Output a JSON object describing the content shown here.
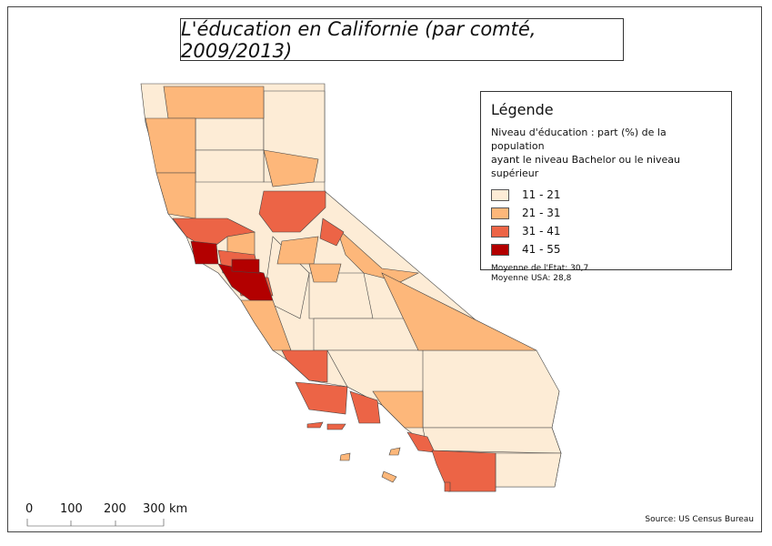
{
  "title": "L'éducation en Californie (par comté,   2009/2013)",
  "legend": {
    "heading": "Légende",
    "subtitle_line1": "Niveau d'éducation :  part (%) de la population",
    "subtitle_line2": "ayant le niveau Bachelor ou le niveau supérieur",
    "classes": [
      {
        "label": "11 - 21",
        "color": "#fdecd6"
      },
      {
        "label": "21 - 31",
        "color": "#fdb77a"
      },
      {
        "label": "31 - 41",
        "color": "#ec6446"
      },
      {
        "label": "41 - 55",
        "color": "#b30000"
      }
    ],
    "state_mean": "Moyenne de l'Etat:  30,7",
    "usa_mean": "Moyenne USA:  28,8"
  },
  "scale_bar": {
    "ticks": [
      "0",
      "100",
      "200",
      "300 km"
    ]
  },
  "source": "Source:  US Census Bureau"
}
